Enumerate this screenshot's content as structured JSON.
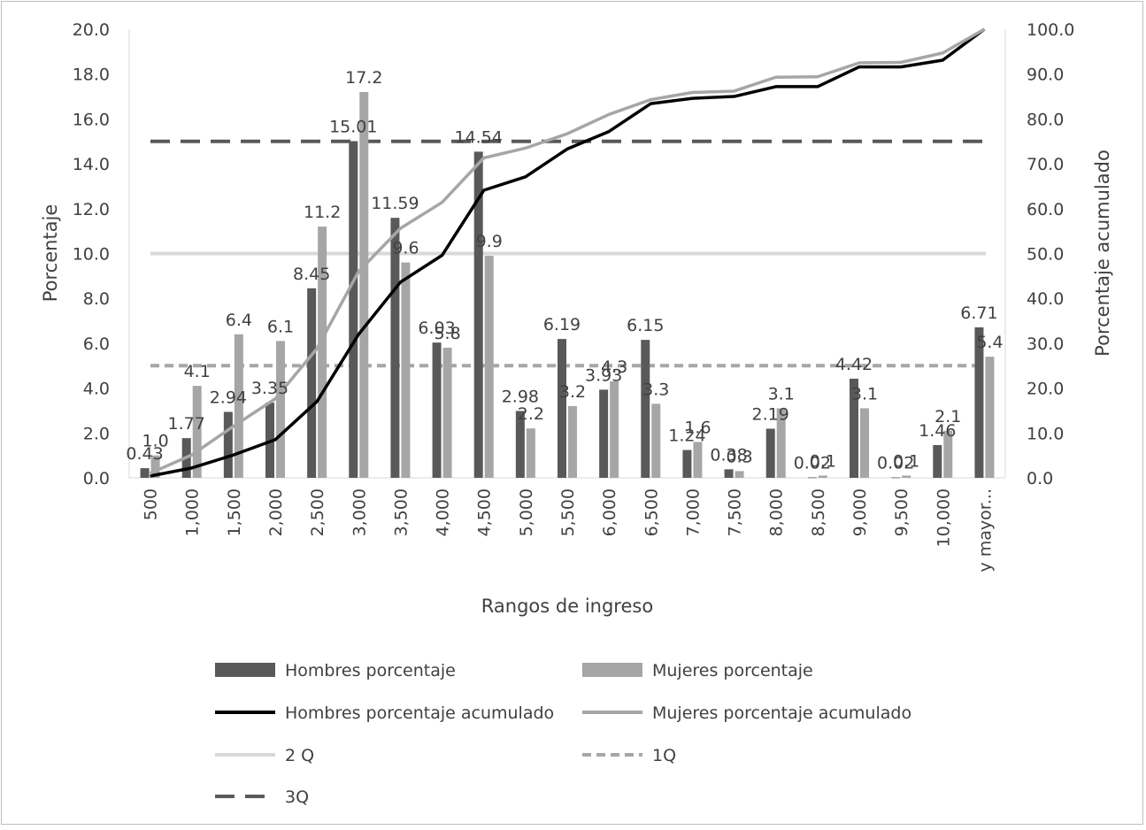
{
  "chart_data": {
    "type": "bar",
    "categories": [
      "500",
      "1,000",
      "1,500",
      "2,000",
      "2,500",
      "3,000",
      "3,500",
      "4,000",
      "4,500",
      "5,000",
      "5,500",
      "6,000",
      "6,500",
      "7,000",
      "7,500",
      "8,000",
      "8,500",
      "9,000",
      "9,500",
      "10,000",
      "y mayor..."
    ],
    "xlabel": "Rangos de ingreso",
    "ylabel": "Porcentaje",
    "y2label": "Porcentaje acumulado",
    "ylim": [
      0,
      20
    ],
    "y2lim": [
      0,
      100
    ],
    "yticks": [
      "0.0",
      "2.0",
      "4.0",
      "6.0",
      "8.0",
      "10.0",
      "12.0",
      "14.0",
      "16.0",
      "18.0",
      "20.0"
    ],
    "y2ticks": [
      "0.0",
      "10.0",
      "20.0",
      "30.0",
      "40.0",
      "50.0",
      "60.0",
      "70.0",
      "80.0",
      "90.0",
      "100.0"
    ],
    "legend_position": "bottom",
    "series": [
      {
        "name": "Hombres porcentaje",
        "kind": "bar",
        "axis": "left",
        "color": "#595959",
        "values": [
          0.43,
          1.77,
          2.94,
          3.35,
          8.45,
          15.01,
          11.59,
          6.03,
          14.54,
          2.98,
          6.19,
          3.93,
          6.15,
          1.24,
          0.38,
          2.19,
          0.02,
          4.42,
          0.02,
          1.46,
          6.71
        ],
        "labels": [
          "0.43",
          "1.77",
          "2.94",
          "3.35",
          "8.45",
          "15.01",
          "11.59",
          "6.03",
          "14.54",
          "2.98",
          "6.19",
          "3.93",
          "6.15",
          "1.24",
          "0.38",
          "2.19",
          "0.02",
          "4.42",
          "0.02",
          "1.46",
          "6.71"
        ]
      },
      {
        "name": "Mujeres porcentaje",
        "kind": "bar",
        "axis": "left",
        "color": "#a6a6a6",
        "values": [
          1.0,
          4.1,
          6.4,
          6.1,
          11.2,
          17.2,
          9.6,
          5.8,
          9.9,
          2.2,
          3.2,
          4.3,
          3.3,
          1.6,
          0.3,
          3.1,
          0.1,
          3.1,
          0.1,
          2.1,
          5.4
        ],
        "labels": [
          "1.0",
          "4.1",
          "6.4",
          "6.1",
          "11.2",
          "17.2",
          "9.6",
          "5.8",
          "9.9",
          "2.2",
          "3.2",
          "4.3",
          "3.3",
          "1.6",
          "0.3",
          "3.1",
          "0.1",
          "3.1",
          "0.1",
          "2.1",
          "5.4"
        ]
      },
      {
        "name": "Hombres porcentaje acumulado",
        "kind": "line",
        "axis": "right",
        "color": "#000000",
        "values": [
          0.4,
          2.2,
          5.1,
          8.5,
          17.0,
          32.0,
          43.6,
          49.6,
          64.1,
          67.1,
          73.3,
          77.2,
          83.4,
          84.6,
          85.0,
          87.2,
          87.2,
          91.6,
          91.6,
          93.1,
          100.0
        ]
      },
      {
        "name": "Mujeres porcentaje acumulado",
        "kind": "line",
        "axis": "right",
        "color": "#a6a6a6",
        "values": [
          1.0,
          5.1,
          11.5,
          17.6,
          28.8,
          46.0,
          55.6,
          61.4,
          71.3,
          73.5,
          76.7,
          81.0,
          84.3,
          85.9,
          86.2,
          89.3,
          89.4,
          92.5,
          92.6,
          94.7,
          100.0
        ]
      },
      {
        "name": "2 Q",
        "kind": "hline",
        "axis": "right",
        "value": 50,
        "color": "#d9d9d9",
        "dash": "solid"
      },
      {
        "name": "1Q",
        "kind": "hline",
        "axis": "right",
        "value": 25,
        "color": "#a6a6a6",
        "dash": "short"
      },
      {
        "name": "3Q",
        "kind": "hline",
        "axis": "right",
        "value": 75,
        "color": "#595959",
        "dash": "long"
      }
    ]
  }
}
